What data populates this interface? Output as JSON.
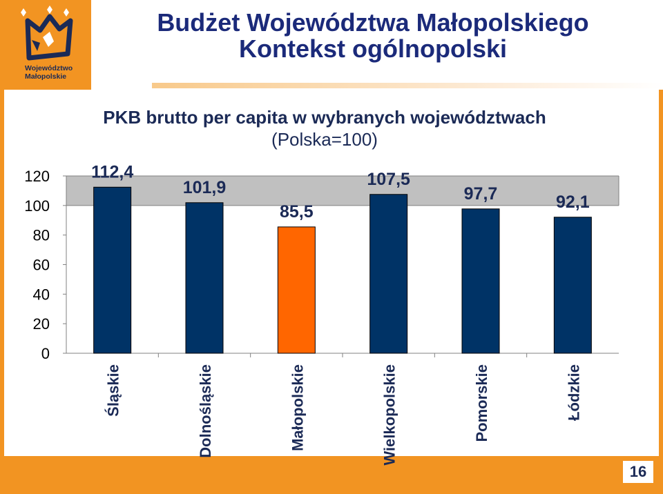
{
  "header": {
    "title_line1": "Budżet Województwa Małopolskiego",
    "title_line2": "Kontekst ogólnopolski"
  },
  "logo": {
    "line1": "Województwo",
    "line2": "Małopolskie"
  },
  "footer": {
    "page_number": "16"
  },
  "colors": {
    "frame": "#f29422",
    "title": "#1b2a7a",
    "bar_default": "#003366",
    "bar_highlight": "#ff6600",
    "plot_bg": "#c0c0c0"
  },
  "chart_data": {
    "type": "bar",
    "title": "PKB brutto per capita w wybranych województwach",
    "subtitle": "(Polska=100)",
    "categories": [
      "Śląskie",
      "Dolnośląskie",
      "Małopolskie",
      "Wielkopolskie",
      "Pomorskie",
      "Łódzkie"
    ],
    "values": [
      112.4,
      101.9,
      85.5,
      107.5,
      97.7,
      92.1
    ],
    "data_labels": [
      "112,4",
      "101,9",
      "85,5",
      "107,5",
      "97,7",
      "92,1"
    ],
    "highlight": "Małopolskie",
    "yticks": [
      "0",
      "20",
      "40",
      "60",
      "80",
      "100",
      "120"
    ],
    "ylim": [
      0,
      120
    ],
    "grid": false,
    "legend": "none"
  }
}
